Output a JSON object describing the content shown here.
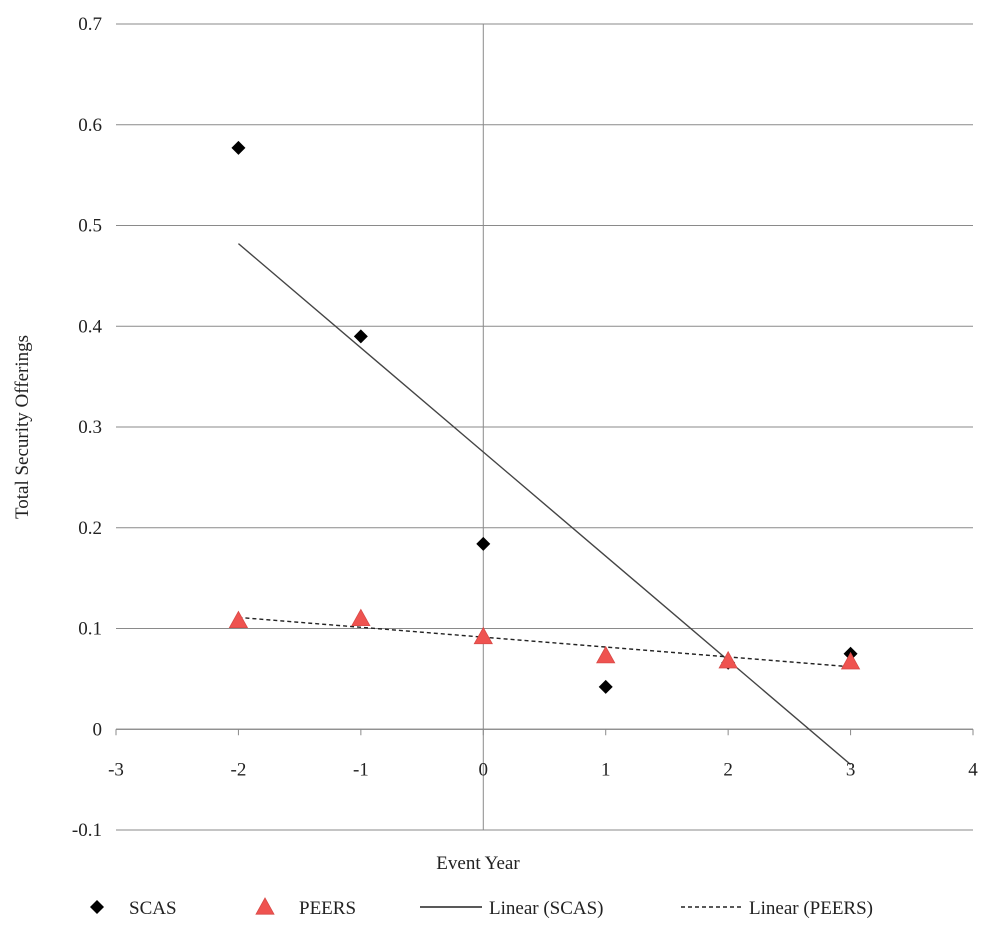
{
  "chart_data": {
    "type": "scatter",
    "title": "",
    "xlabel": "Event Year",
    "ylabel": "Total Security Offerings",
    "xlim": [
      -3,
      4
    ],
    "ylim": [
      -0.1,
      0.7
    ],
    "x_ticks": [
      -3,
      -2,
      -1,
      0,
      1,
      2,
      3,
      4
    ],
    "y_ticks": [
      -0.1,
      0,
      0.1,
      0.2,
      0.3,
      0.4,
      0.5,
      0.6,
      0.7
    ],
    "x_tick_labels": [
      "-3",
      "-2",
      "-1",
      "0",
      "1",
      "2",
      "3",
      "4"
    ],
    "y_tick_labels": [
      "-0.1",
      "0",
      "0.1",
      "0.2",
      "0.3",
      "0.4",
      "0.5",
      "0.6",
      "0.7"
    ],
    "grid": "horizontal",
    "legend_position": "bottom",
    "series": [
      {
        "name": "SCAS",
        "marker": "diamond",
        "color": "#000000",
        "x": [
          -2,
          -1,
          0,
          1,
          2,
          3
        ],
        "y": [
          0.577,
          0.39,
          0.184,
          0.042,
          0.066,
          0.075
        ]
      },
      {
        "name": "PEERS",
        "marker": "triangle",
        "color": "#ef5350",
        "x": [
          -2,
          -1,
          0,
          1,
          2,
          3
        ],
        "y": [
          0.108,
          0.11,
          0.092,
          0.073,
          0.068,
          0.067
        ]
      }
    ],
    "trendlines": [
      {
        "name": "Linear (SCAS)",
        "style": "solid",
        "color": "#444444",
        "x": [
          -2,
          3
        ],
        "y": [
          0.482,
          -0.035
        ]
      },
      {
        "name": "Linear (PEERS)",
        "style": "dashed",
        "color": "#222222",
        "x": [
          -2,
          3
        ],
        "y": [
          0.111,
          0.062
        ]
      }
    ]
  }
}
